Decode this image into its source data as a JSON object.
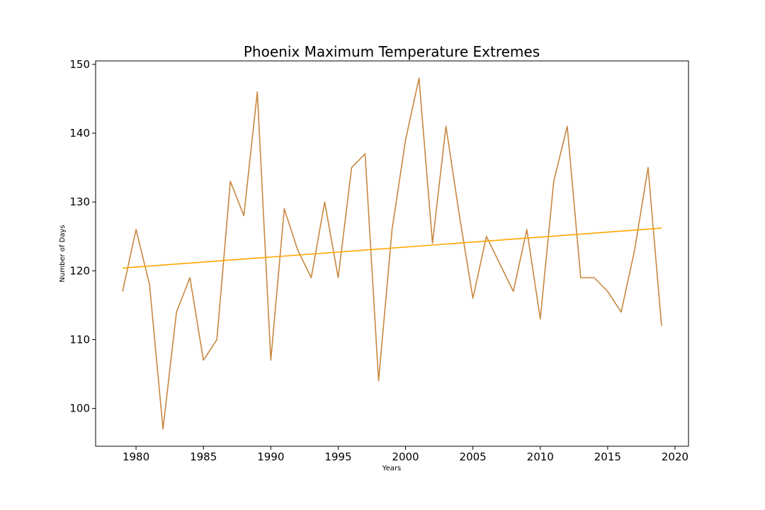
{
  "chart_data": {
    "type": "line",
    "title": "Phoenix Maximum Temperature Extremes",
    "xlabel": "Years",
    "ylabel": "Number of Days",
    "xlim": [
      1977,
      2021
    ],
    "ylim": [
      94.5,
      150.5
    ],
    "x_ticks": [
      "1980",
      "1985",
      "1990",
      "1995",
      "2000",
      "2005",
      "2010",
      "2015",
      "2020"
    ],
    "y_ticks": [
      "100",
      "110",
      "120",
      "130",
      "140",
      "150"
    ],
    "grid": false,
    "legend": "none",
    "x": [
      1979,
      1980,
      1981,
      1982,
      1983,
      1984,
      1985,
      1986,
      1987,
      1988,
      1989,
      1990,
      1991,
      1992,
      1993,
      1994,
      1995,
      1996,
      1997,
      1998,
      1999,
      2000,
      2001,
      2002,
      2003,
      2004,
      2005,
      2006,
      2007,
      2008,
      2009,
      2010,
      2011,
      2012,
      2013,
      2014,
      2015,
      2016,
      2017,
      2018,
      2019
    ],
    "series": [
      {
        "values": [
          117,
          126,
          118,
          97,
          114,
          119,
          107,
          110,
          133,
          128,
          146,
          107,
          129,
          123,
          119,
          130,
          119,
          135,
          137,
          104,
          126,
          139,
          148,
          124,
          141,
          128,
          116,
          125,
          121,
          117,
          126,
          113,
          133,
          141,
          119,
          119,
          117,
          114,
          123,
          135,
          112
        ],
        "color": "#c8873f"
      },
      {
        "x": [
          1979,
          2019
        ],
        "values": [
          120.4,
          126.2
        ],
        "color": "#ffa500"
      }
    ]
  }
}
